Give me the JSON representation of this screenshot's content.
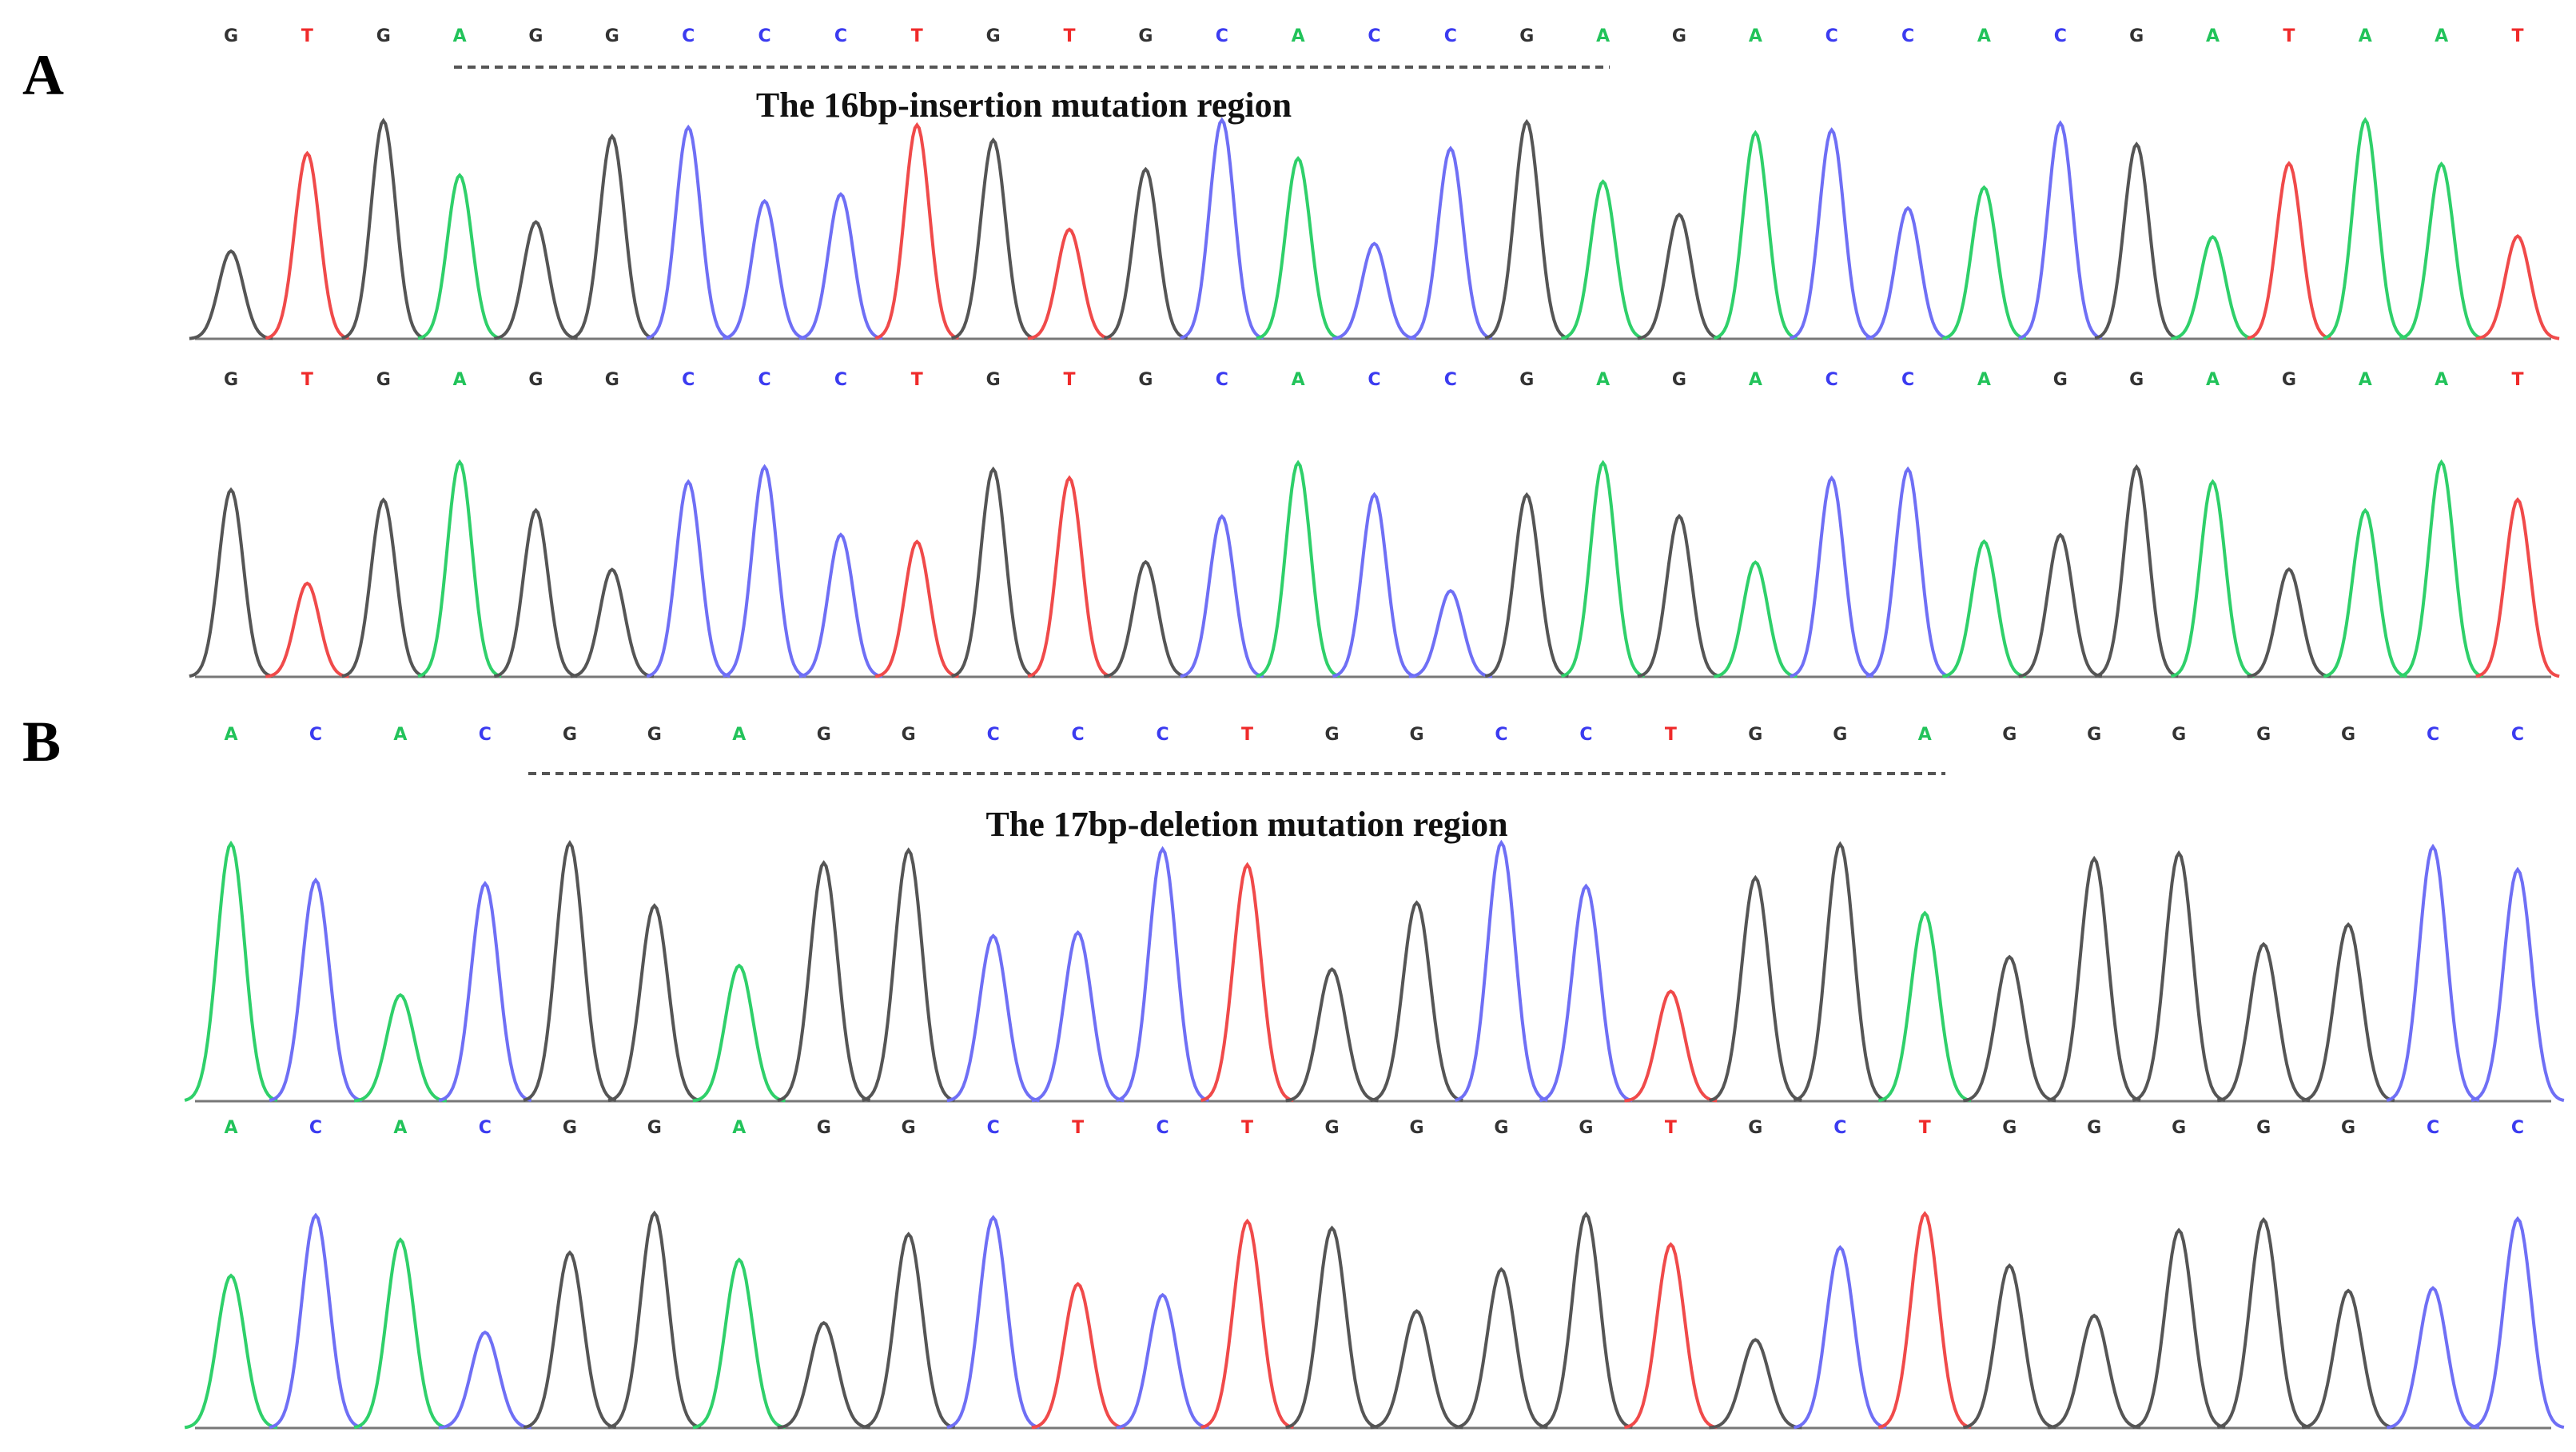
{
  "panels": [
    {
      "label": "A",
      "region_label": "The 16bp-insertion mutation region",
      "tracks": [
        {
          "bases": [
            "G",
            "T",
            "G",
            "A",
            "G",
            "G",
            "C",
            "C",
            "C",
            "T",
            "G",
            "T",
            "G",
            "C",
            "A",
            "C",
            "C",
            "G",
            "A",
            "G",
            "A",
            "C",
            "C",
            "A",
            "C",
            "G",
            "A",
            "T",
            "A",
            "A",
            "T"
          ]
        },
        {
          "bases": [
            "G",
            "T",
            "G",
            "A",
            "G",
            "G",
            "C",
            "C",
            "C",
            "T",
            "G",
            "T",
            "G",
            "C",
            "A",
            "C",
            "C",
            "G",
            "A",
            "G",
            "A",
            "C",
            "C",
            "A",
            "G",
            "G",
            "A",
            "G",
            "A",
            "A",
            "T"
          ]
        }
      ]
    },
    {
      "label": "B",
      "region_label": "The 17bp-deletion mutation region",
      "tracks": [
        {
          "bases": [
            "A",
            "C",
            "A",
            "C",
            "G",
            "G",
            "A",
            "G",
            "G",
            "C",
            "C",
            "C",
            "T",
            "G",
            "G",
            "C",
            "C",
            "T",
            "G",
            "G",
            "A",
            "G",
            "G",
            "G",
            "G",
            "G",
            "C",
            "C"
          ]
        },
        {
          "bases": [
            "A",
            "C",
            "A",
            "C",
            "G",
            "G",
            "A",
            "G",
            "G",
            "C",
            "T",
            "C",
            "T",
            "G",
            "G",
            "G",
            "G",
            "T",
            "G",
            "C",
            "T",
            "G",
            "G",
            "G",
            "G",
            "G",
            "C",
            "C"
          ]
        }
      ]
    }
  ]
}
